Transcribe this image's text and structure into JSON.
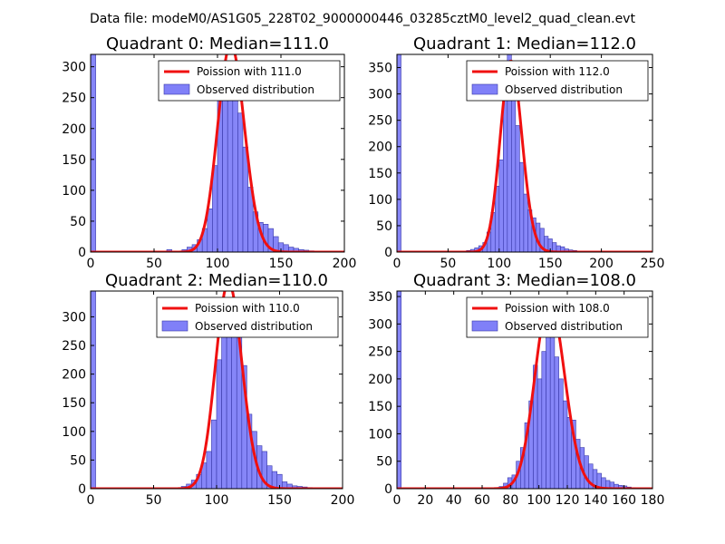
{
  "figure_title": "Data file: modeM0/AS1G05_228T02_9000000446_03285cztM0_level2_quad_clean.evt",
  "colors": {
    "hist_fill": "#8080f8",
    "hist_edge": "#3838a8",
    "poisson_line": "#f01010"
  },
  "chart_data": [
    {
      "type": "bar",
      "title": "Quadrant 0: Median=111.0",
      "median": 111.0,
      "xlim": [
        0,
        200
      ],
      "ylim": [
        0,
        320
      ],
      "xticks": [
        0,
        50,
        100,
        150,
        200
      ],
      "yticks": [
        0,
        50,
        100,
        150,
        200,
        250,
        300
      ],
      "legend": {
        "placement": "top-right",
        "line_label": "Poission with 111.0",
        "bar_label": "Observed distribution"
      },
      "bin_width": 4,
      "bin_starts": [
        0,
        60,
        72,
        76,
        80,
        84,
        88,
        92,
        96,
        100,
        104,
        108,
        112,
        116,
        120,
        124,
        128,
        132,
        136,
        140,
        144,
        148,
        152,
        156,
        160,
        164,
        168,
        172,
        176,
        180,
        184,
        188
      ],
      "counts": [
        320,
        4,
        4,
        8,
        12,
        20,
        38,
        70,
        140,
        300,
        290,
        285,
        275,
        225,
        170,
        105,
        65,
        48,
        45,
        38,
        25,
        15,
        12,
        8,
        6,
        4,
        3,
        2,
        1,
        1,
        1,
        1
      ]
    },
    {
      "type": "bar",
      "title": "Quadrant 1: Median=112.0",
      "median": 112.0,
      "xlim": [
        0,
        250
      ],
      "ylim": [
        0,
        375
      ],
      "xticks": [
        0,
        50,
        100,
        150,
        200,
        250
      ],
      "yticks": [
        0,
        50,
        100,
        150,
        200,
        250,
        300,
        350
      ],
      "legend": {
        "placement": "top-right",
        "line_label": "Poission with 112.0",
        "bar_label": "Observed distribution"
      },
      "bin_width": 4,
      "bin_starts": [
        0,
        68,
        72,
        76,
        80,
        84,
        88,
        92,
        96,
        100,
        104,
        108,
        112,
        116,
        120,
        124,
        128,
        132,
        136,
        140,
        144,
        148,
        152,
        156,
        160,
        164,
        168,
        172,
        176,
        180,
        184,
        188,
        192,
        196
      ],
      "counts": [
        375,
        3,
        5,
        8,
        12,
        18,
        38,
        75,
        125,
        175,
        340,
        375,
        350,
        240,
        170,
        110,
        80,
        65,
        55,
        45,
        30,
        25,
        18,
        12,
        10,
        6,
        4,
        3,
        2,
        2,
        1,
        1,
        1,
        1
      ]
    },
    {
      "type": "bar",
      "title": "Quadrant 2: Median=110.0",
      "median": 110.0,
      "xlim": [
        0,
        200
      ],
      "ylim": [
        0,
        345
      ],
      "xticks": [
        0,
        50,
        100,
        150,
        200
      ],
      "yticks": [
        0,
        50,
        100,
        150,
        200,
        250,
        300
      ],
      "legend": {
        "placement": "top-right",
        "line_label": "Poission with 110.0",
        "bar_label": "Observed distribution"
      },
      "bin_width": 4,
      "bin_starts": [
        0,
        72,
        76,
        80,
        84,
        88,
        92,
        96,
        100,
        104,
        108,
        112,
        116,
        120,
        124,
        128,
        132,
        136,
        140,
        144,
        148,
        152,
        156,
        160,
        164,
        168,
        172
      ],
      "counts": [
        345,
        4,
        8,
        15,
        25,
        45,
        65,
        120,
        225,
        290,
        310,
        275,
        270,
        215,
        130,
        100,
        75,
        65,
        40,
        30,
        25,
        12,
        8,
        5,
        4,
        3,
        2
      ]
    },
    {
      "type": "bar",
      "title": "Quadrant 3: Median=108.0",
      "median": 108.0,
      "xlim": [
        0,
        180
      ],
      "ylim": [
        0,
        360
      ],
      "xticks": [
        0,
        20,
        40,
        60,
        80,
        100,
        120,
        140,
        160,
        180
      ],
      "yticks": [
        0,
        50,
        100,
        150,
        200,
        250,
        300,
        350
      ],
      "legend": {
        "placement": "top-right",
        "line_label": "Poission with 108.0",
        "bar_label": "Observed distribution"
      },
      "bin_width": 3,
      "bin_starts": [
        0,
        72,
        75,
        78,
        81,
        84,
        87,
        90,
        93,
        96,
        99,
        102,
        105,
        108,
        111,
        114,
        117,
        120,
        123,
        126,
        129,
        132,
        135,
        138,
        141,
        144,
        147,
        150,
        153,
        156,
        159,
        162,
        165,
        168
      ],
      "counts": [
        360,
        4,
        10,
        20,
        25,
        50,
        75,
        120,
        160,
        225,
        200,
        250,
        300,
        280,
        240,
        200,
        160,
        130,
        125,
        90,
        75,
        60,
        45,
        35,
        28,
        20,
        15,
        12,
        8,
        6,
        5,
        3,
        2,
        1
      ]
    }
  ]
}
